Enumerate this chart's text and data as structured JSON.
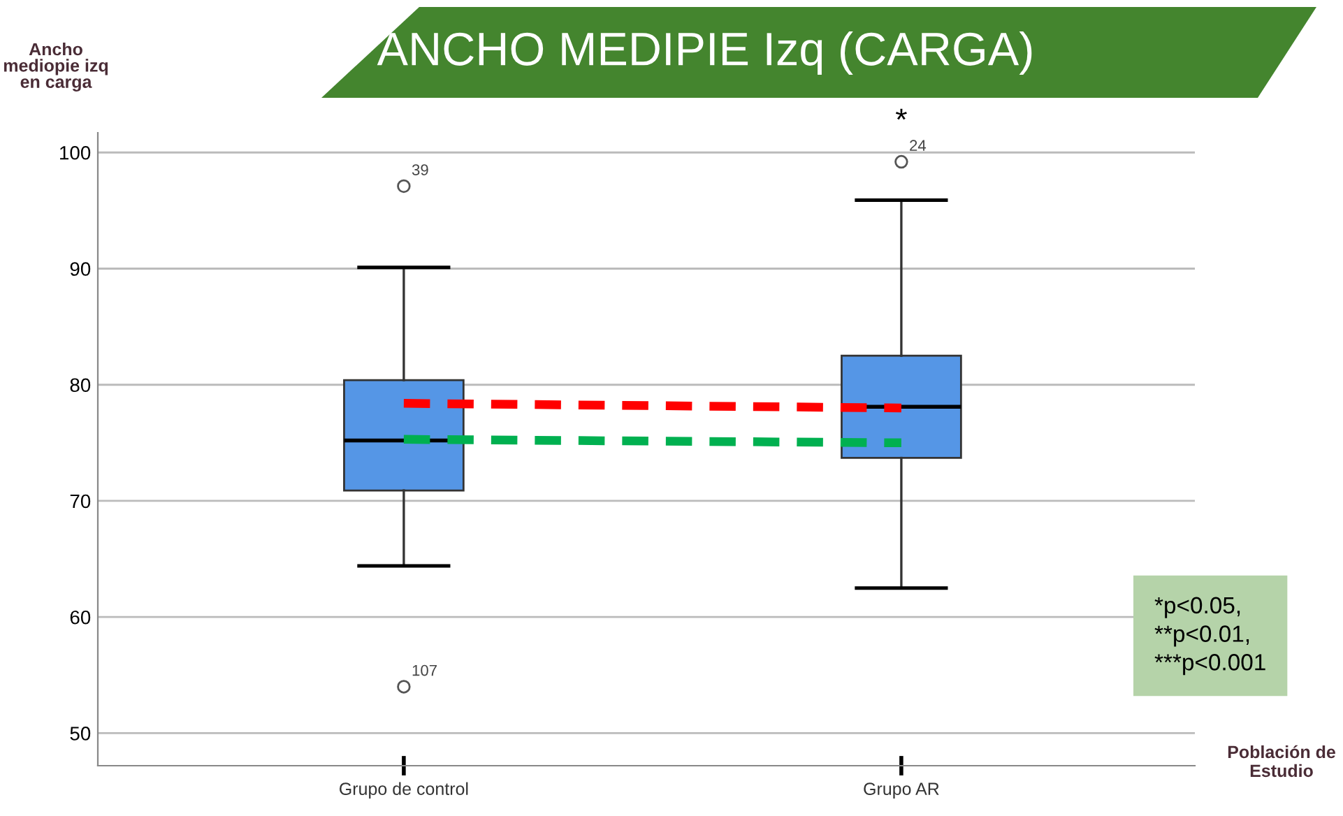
{
  "chart_data": {
    "type": "box",
    "title": "ANCHO MEDIPIE Izq (CARGA)",
    "ylabel": "Ancho\nmediopie izq\nen carga",
    "xlabel": "Población de\nEstudio",
    "categories": [
      "Grupo de control",
      "Grupo AR"
    ],
    "boxes": [
      {
        "low": 64.4,
        "q1": 70.9,
        "median": 75.2,
        "q3": 80.4,
        "high": 90.1,
        "outliers": [
          97.1,
          54.0
        ]
      },
      {
        "low": 62.5,
        "q1": 73.7,
        "median": 78.1,
        "q3": 82.5,
        "high": 95.9,
        "outliers": [
          99.2
        ]
      }
    ],
    "color": "#5596e6",
    "series": [
      {
        "type": "line",
        "color": "#ff0000",
        "values": [
          78.4,
          78.0
        ]
      },
      {
        "type": "line",
        "color": "#00b050",
        "values": [
          75.3,
          75.0
        ]
      }
    ],
    "line_style": "dashed",
    "marker": "none",
    "ylim": [
      47.2,
      101.7
    ],
    "yticks": [
      50,
      60,
      70,
      80,
      90,
      100
    ],
    "grid": "y",
    "annotations": [
      "39",
      "107",
      "24",
      "*",
      "*p<0.05,\n**p<0.01,\n***p<0.001"
    ]
  }
}
